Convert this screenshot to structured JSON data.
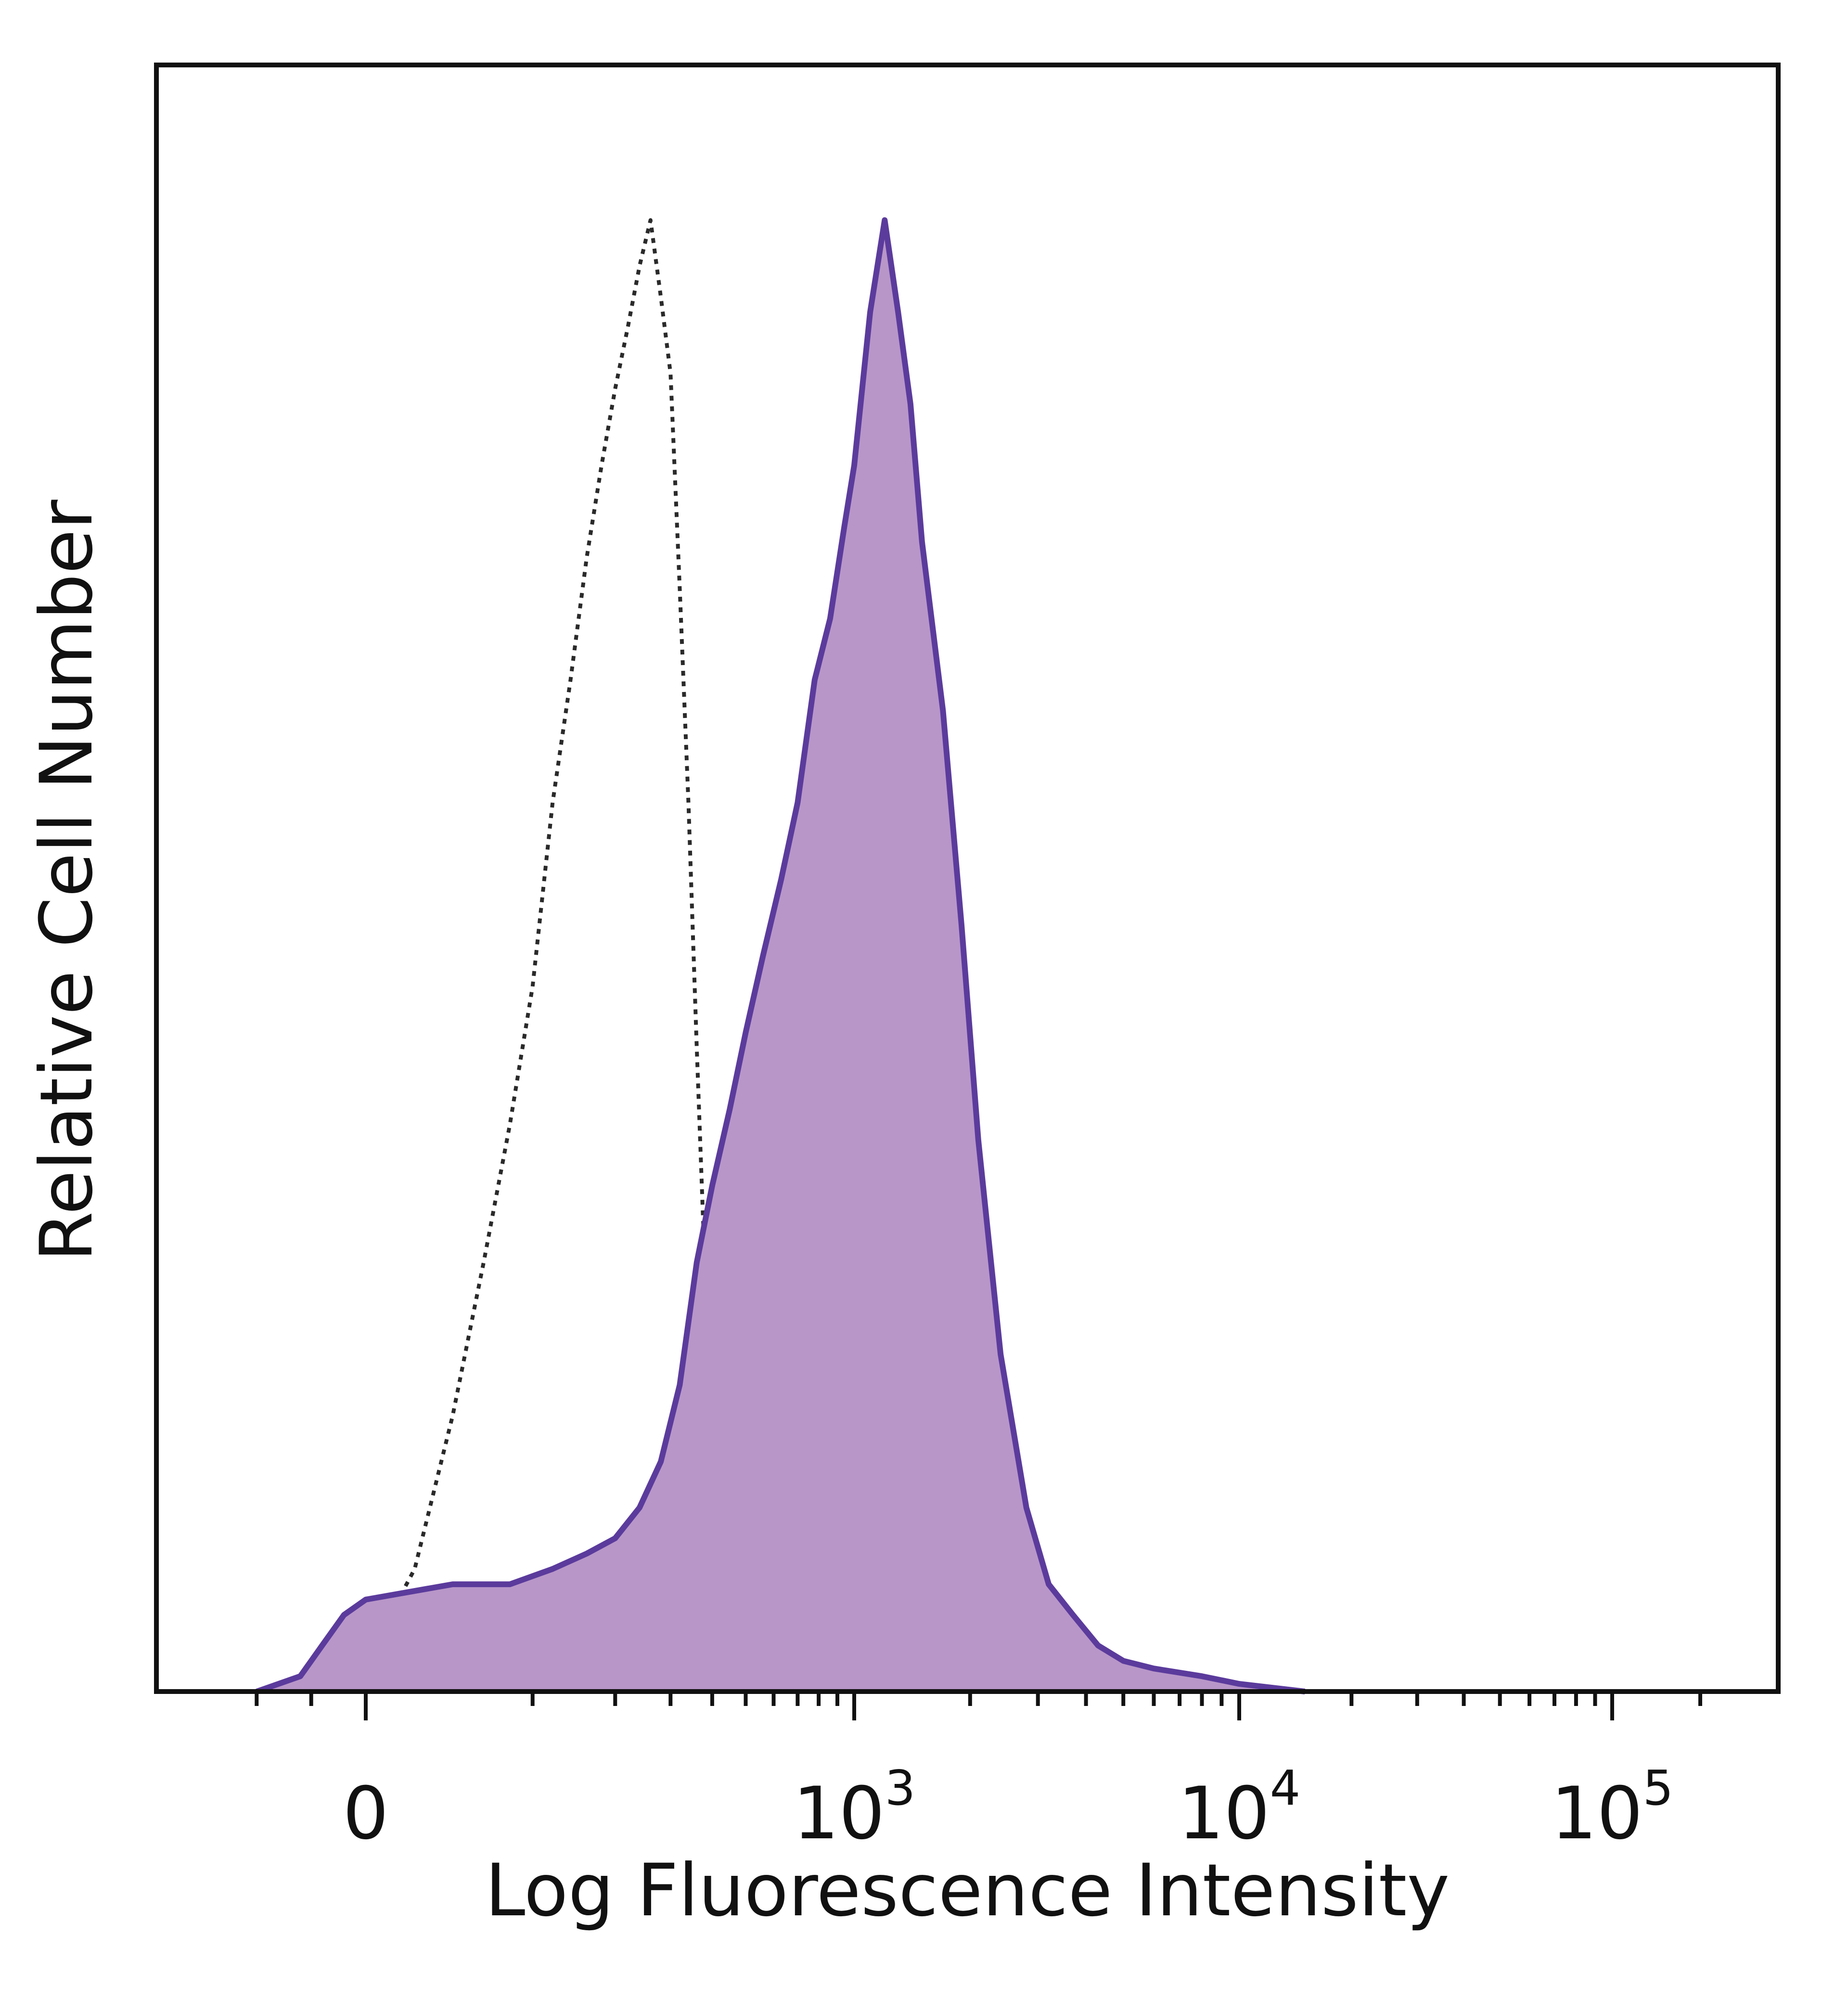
{
  "chart_data": {
    "type": "area",
    "xlabel": "Log Fluorescence Intensity",
    "ylabel": "Relative Cell Number",
    "x_scale": "biexponential",
    "xlim": [
      -300,
      300000
    ],
    "ylim": [
      0,
      100
    ],
    "grid": false,
    "legend": "none",
    "x_tick_labels": [
      {
        "value": 0,
        "base": "0",
        "exp": ""
      },
      {
        "value": 1000,
        "base": "10",
        "exp": "3"
      },
      {
        "value": 10000,
        "base": "10",
        "exp": "4"
      },
      {
        "value": 100000,
        "base": "10",
        "exp": "5"
      }
    ],
    "series": [
      {
        "style": "dotted-outline",
        "color": "#2a2a2a",
        "x": [
          0,
          20,
          40,
          60,
          80,
          100,
          120,
          140,
          160,
          180,
          200,
          220,
          240,
          260,
          280,
          300,
          320,
          340,
          360,
          380,
          420,
          460,
          520,
          600,
          700
        ],
        "y": [
          2,
          8,
          18,
          28,
          37,
          46,
          58,
          66,
          74,
          80,
          85,
          89,
          93,
          96,
          91,
          86,
          72,
          58,
          42,
          28,
          14,
          6,
          2,
          0.5,
          0
        ]
      },
      {
        "style": "filled",
        "color": "#5b3b9c",
        "fill": "#b896c8",
        "x": [
          -200,
          -120,
          -80,
          -40,
          0,
          40,
          80,
          120,
          160,
          200,
          240,
          280,
          320,
          360,
          400,
          450,
          500,
          560,
          630,
          700,
          780,
          860,
          940,
          1000,
          1100,
          1200,
          1300,
          1400,
          1500,
          1700,
          1900,
          2100,
          2400,
          2800,
          3200,
          3700,
          4300,
          5000,
          6000,
          8000,
          10000,
          15000
        ],
        "y": [
          0,
          1,
          3,
          5,
          6,
          7,
          7,
          8,
          9,
          10,
          12,
          15,
          20,
          28,
          33,
          38,
          43,
          48,
          53,
          58,
          66,
          70,
          76,
          80,
          90,
          96,
          90,
          84,
          75,
          64,
          50,
          36,
          22,
          12,
          7,
          5,
          3,
          2,
          1.5,
          1,
          0.5,
          0
        ]
      }
    ]
  }
}
